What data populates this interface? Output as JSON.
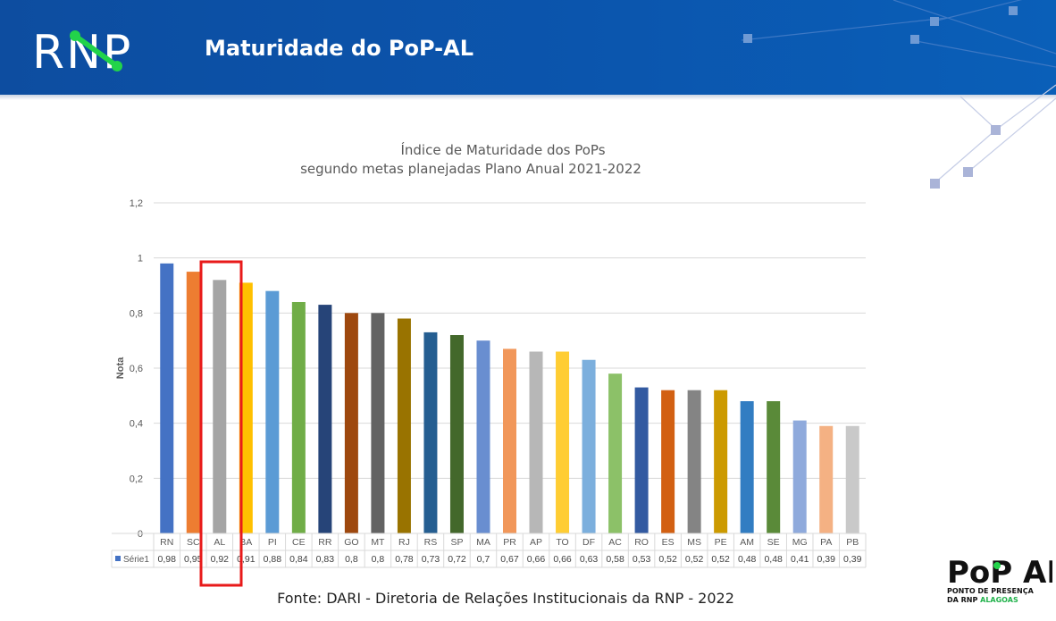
{
  "header": {
    "logo_text": "RNP",
    "title": "Maturidade do PoP-AL"
  },
  "colors": {
    "header_blue": "#0b55ad",
    "highlight_red": "#e81a1a",
    "logo_green": "#22d34a"
  },
  "chart_data": {
    "type": "bar",
    "title": "Índice de Maturidade dos PoPs",
    "subtitle": "segundo metas planejadas Plano Anual 2021-2022",
    "ylabel": "Nota",
    "xlabel": "",
    "ylim": [
      0,
      1.2
    ],
    "yticks": [
      "0",
      "0,2",
      "0,4",
      "0,6",
      "0,8",
      "1",
      "1,2"
    ],
    "grid": true,
    "categories": [
      "RN",
      "SC",
      "AL",
      "BA",
      "PI",
      "CE",
      "RR",
      "GO",
      "MT",
      "RJ",
      "RS",
      "SP",
      "MA",
      "PR",
      "AP",
      "TO",
      "DF",
      "AC",
      "RO",
      "ES",
      "MS",
      "PE",
      "AM",
      "SE",
      "MG",
      "PA",
      "PB"
    ],
    "series": [
      {
        "name": "Série1",
        "values": [
          0.98,
          0.95,
          0.92,
          0.91,
          0.88,
          0.84,
          0.83,
          0.8,
          0.8,
          0.78,
          0.73,
          0.72,
          0.7,
          0.67,
          0.66,
          0.66,
          0.63,
          0.58,
          0.53,
          0.52,
          0.52,
          0.52,
          0.48,
          0.48,
          0.41,
          0.39,
          0.39
        ],
        "value_labels": [
          "0,98",
          "0,95",
          "0,92",
          "0,91",
          "0,88",
          "0,84",
          "0,83",
          "0,8",
          "0,8",
          "0,78",
          "0,73",
          "0,72",
          "0,7",
          "0,67",
          "0,66",
          "0,66",
          "0,63",
          "0,58",
          "0,53",
          "0,52",
          "0,52",
          "0,52",
          "0,48",
          "0,48",
          "0,41",
          "0,39",
          "0,39"
        ]
      }
    ],
    "bar_colors": [
      "#4472c4",
      "#ed7d31",
      "#a5a5a5",
      "#ffc000",
      "#5b9bd5",
      "#70ad47",
      "#264478",
      "#9e480e",
      "#636363",
      "#997300",
      "#255e91",
      "#43682b",
      "#698ed0",
      "#f1975a",
      "#b7b7b7",
      "#ffcd33",
      "#7cafdd",
      "#8cc168",
      "#335aa1",
      "#d26012",
      "#848484",
      "#cc9a00",
      "#327dc2",
      "#5a8a39",
      "#8faadc",
      "#f4b183",
      "#c9c9c9"
    ],
    "highlighted_category": "AL",
    "legend_placement": "data-table"
  },
  "footer": {
    "source": "Fonte: DARI - Diretoria de Relações Institucionais da RNP - 2022"
  },
  "brand": {
    "popal_logo": "PoP AL",
    "popal_line1": "PONTO DE PRESENÇA",
    "popal_line2a": "DA RNP ",
    "popal_line2b": "ALAGOAS"
  }
}
